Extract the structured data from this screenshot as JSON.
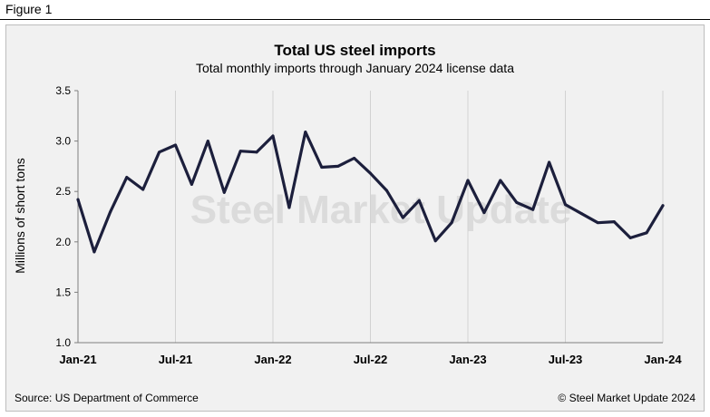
{
  "figure_label": "Figure  1",
  "watermark": "Steel Market Update",
  "chart_data": {
    "type": "line",
    "title": "Total US steel imports",
    "subtitle": "Total monthly imports through January 2024 license data",
    "xlabel": "",
    "ylabel": "Millions of short tons",
    "ylim": [
      1.0,
      3.5
    ],
    "yticks": [
      "1.0",
      "1.5",
      "2.0",
      "2.5",
      "3.0",
      "3.5"
    ],
    "x_tick_labels": [
      "Jan-21",
      "Jul-21",
      "Jan-22",
      "Jul-22",
      "Jan-23",
      "Jul-23",
      "Jan-24"
    ],
    "grid": "vertical",
    "series": [
      {
        "name": "Total US steel imports",
        "color": "#1c1f3c",
        "x": [
          "Jan-21",
          "Feb-21",
          "Mar-21",
          "Apr-21",
          "May-21",
          "Jun-21",
          "Jul-21",
          "Aug-21",
          "Sep-21",
          "Oct-21",
          "Nov-21",
          "Dec-21",
          "Jan-22",
          "Feb-22",
          "Mar-22",
          "Apr-22",
          "May-22",
          "Jun-22",
          "Jul-22",
          "Aug-22",
          "Sep-22",
          "Oct-22",
          "Nov-22",
          "Dec-22",
          "Jan-23",
          "Feb-23",
          "Mar-23",
          "Apr-23",
          "May-23",
          "Jun-23",
          "Jul-23",
          "Aug-23",
          "Sep-23",
          "Oct-23",
          "Nov-23",
          "Dec-23",
          "Jan-24"
        ],
        "values": [
          2.42,
          1.9,
          2.3,
          2.64,
          2.52,
          2.89,
          2.96,
          2.57,
          3.0,
          2.49,
          2.9,
          2.89,
          3.05,
          2.34,
          3.09,
          2.74,
          2.75,
          2.83,
          2.68,
          2.51,
          2.24,
          2.41,
          2.01,
          2.19,
          2.61,
          2.29,
          2.61,
          2.39,
          2.32,
          2.79,
          2.37,
          2.28,
          2.19,
          2.2,
          2.04,
          2.09,
          2.36
        ]
      }
    ]
  },
  "footer": {
    "source": "Source: US Department of Commerce",
    "copyright": "© Steel Market Update 2024"
  }
}
